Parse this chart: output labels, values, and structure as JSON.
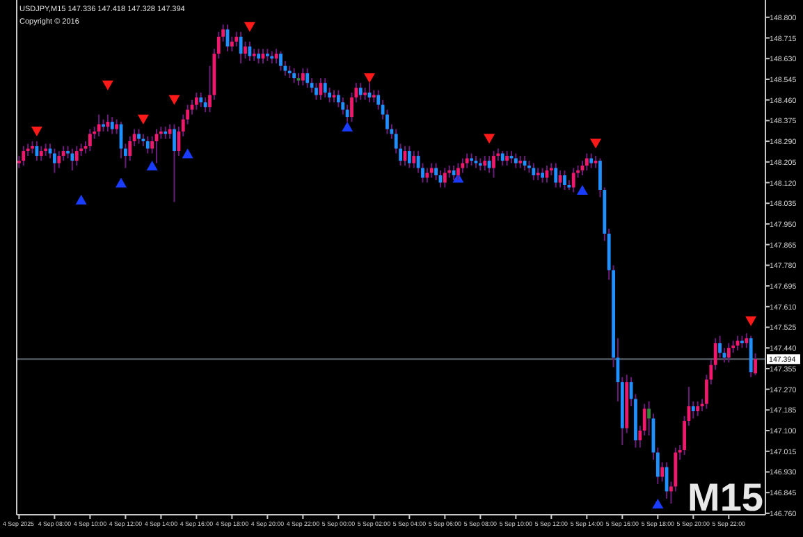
{
  "chart_data": {
    "type": "candlestick",
    "title": "USDJPY,M15  147.336 147.418 147.328 147.394",
    "annotations": [
      "Copyright © 2016",
      "M15",
      "4 Sep 2025"
    ],
    "x": [
      "2025-09-04T06:00",
      "2025-09-04T06:15",
      "2025-09-04T06:30",
      "2025-09-04T06:45",
      "2025-09-04T07:00",
      "2025-09-04T07:15",
      "2025-09-04T07:30",
      "2025-09-04T07:45",
      "2025-09-04T08:00",
      "2025-09-04T08:15",
      "2025-09-04T08:30",
      "2025-09-04T08:45",
      "2025-09-04T09:00",
      "2025-09-04T09:15",
      "2025-09-04T09:30",
      "2025-09-04T09:45",
      "2025-09-04T10:00",
      "2025-09-04T10:15",
      "2025-09-04T10:30",
      "2025-09-04T10:45",
      "2025-09-04T11:00",
      "2025-09-04T11:15",
      "2025-09-04T11:30",
      "2025-09-04T11:45",
      "2025-09-04T12:00",
      "2025-09-04T12:15",
      "2025-09-04T12:30",
      "2025-09-04T12:45",
      "2025-09-04T13:00",
      "2025-09-04T13:15",
      "2025-09-04T13:30",
      "2025-09-04T13:45",
      "2025-09-04T14:00",
      "2025-09-04T14:15",
      "2025-09-04T14:30",
      "2025-09-04T14:45",
      "2025-09-04T15:00",
      "2025-09-04T15:15",
      "2025-09-04T15:30",
      "2025-09-04T15:45",
      "2025-09-04T16:00",
      "2025-09-04T16:15",
      "2025-09-04T16:30",
      "2025-09-04T16:45",
      "2025-09-04T17:00",
      "2025-09-04T17:15",
      "2025-09-04T17:30",
      "2025-09-04T17:45",
      "2025-09-04T18:00",
      "2025-09-04T18:15",
      "2025-09-04T18:30",
      "2025-09-04T18:45",
      "2025-09-04T19:00",
      "2025-09-04T19:15",
      "2025-09-04T19:30",
      "2025-09-04T19:45",
      "2025-09-04T20:00",
      "2025-09-04T20:15",
      "2025-09-04T20:30",
      "2025-09-04T20:45",
      "2025-09-04T21:00",
      "2025-09-04T21:15",
      "2025-09-04T21:30",
      "2025-09-04T21:45",
      "2025-09-04T22:00",
      "2025-09-04T22:15",
      "2025-09-04T22:30",
      "2025-09-04T22:45",
      "2025-09-04T23:00",
      "2025-09-04T23:15",
      "2025-09-04T23:30",
      "2025-09-04T23:45",
      "2025-09-05T00:00",
      "2025-09-05T00:15",
      "2025-09-05T00:30",
      "2025-09-05T00:45",
      "2025-09-05T01:00",
      "2025-09-05T01:15",
      "2025-09-05T01:30",
      "2025-09-05T01:45",
      "2025-09-05T02:00",
      "2025-09-05T02:15",
      "2025-09-05T02:30",
      "2025-09-05T02:45",
      "2025-09-05T03:00",
      "2025-09-05T03:15",
      "2025-09-05T03:30",
      "2025-09-05T03:45",
      "2025-09-05T04:00",
      "2025-09-05T04:15",
      "2025-09-05T04:30",
      "2025-09-05T04:45",
      "2025-09-05T05:00",
      "2025-09-05T05:15",
      "2025-09-05T05:30",
      "2025-09-05T05:45",
      "2025-09-05T06:00",
      "2025-09-05T06:15",
      "2025-09-05T06:30",
      "2025-09-05T06:45",
      "2025-09-05T07:00",
      "2025-09-05T07:15",
      "2025-09-05T07:30",
      "2025-09-05T07:45",
      "2025-09-05T08:00",
      "2025-09-05T08:15",
      "2025-09-05T08:30",
      "2025-09-05T08:45",
      "2025-09-05T09:00",
      "2025-09-05T09:15",
      "2025-09-05T09:30",
      "2025-09-05T09:45",
      "2025-09-05T10:00",
      "2025-09-05T10:15",
      "2025-09-05T10:30",
      "2025-09-05T10:45",
      "2025-09-05T11:00",
      "2025-09-05T11:15",
      "2025-09-05T11:30",
      "2025-09-05T11:45",
      "2025-09-05T12:00",
      "2025-09-05T12:15",
      "2025-09-05T12:30",
      "2025-09-05T12:45",
      "2025-09-05T13:00",
      "2025-09-05T13:15",
      "2025-09-05T13:30",
      "2025-09-05T13:45",
      "2025-09-05T14:00",
      "2025-09-05T14:15",
      "2025-09-05T14:30",
      "2025-09-05T14:45",
      "2025-09-05T15:00",
      "2025-09-05T15:15",
      "2025-09-05T15:30",
      "2025-09-05T15:45",
      "2025-09-05T16:00",
      "2025-09-05T16:15",
      "2025-09-05T16:30",
      "2025-09-05T16:45",
      "2025-09-05T17:00",
      "2025-09-05T17:15",
      "2025-09-05T17:30",
      "2025-09-05T17:45",
      "2025-09-05T18:00",
      "2025-09-05T18:15",
      "2025-09-05T18:30",
      "2025-09-05T18:45",
      "2025-09-05T19:00",
      "2025-09-05T19:15",
      "2025-09-05T19:30",
      "2025-09-05T19:45",
      "2025-09-05T20:00",
      "2025-09-05T20:15",
      "2025-09-05T20:30",
      "2025-09-05T20:45",
      "2025-09-05T21:00",
      "2025-09-05T21:15",
      "2025-09-05T21:30",
      "2025-09-05T21:45",
      "2025-09-05T22:00",
      "2025-09-05T22:15",
      "2025-09-05T22:30",
      "2025-09-05T22:45",
      "2025-09-05T23:00",
      "2025-09-05T23:15",
      "2025-09-05T23:30"
    ],
    "series": [
      {
        "type": "candlestick",
        "ohlc": [
          [
            148.2,
            148.23,
            148.18,
            148.21
          ],
          [
            148.21,
            148.27,
            148.19,
            148.25
          ],
          [
            148.25,
            148.28,
            148.23,
            148.26
          ],
          [
            148.26,
            148.29,
            148.24,
            148.27
          ],
          [
            148.27,
            148.29,
            148.21,
            148.23
          ],
          [
            148.23,
            148.27,
            148.21,
            148.25
          ],
          [
            148.25,
            148.28,
            148.23,
            148.26
          ],
          [
            148.26,
            148.28,
            148.22,
            148.24
          ],
          [
            148.24,
            148.26,
            148.16,
            148.2
          ],
          [
            148.2,
            148.25,
            148.18,
            148.23
          ],
          [
            148.23,
            148.27,
            148.21,
            148.25
          ],
          [
            148.25,
            148.27,
            148.22,
            148.24
          ],
          [
            148.24,
            148.26,
            148.17,
            148.21
          ],
          [
            148.21,
            148.27,
            148.19,
            148.25
          ],
          [
            148.25,
            148.28,
            148.23,
            148.26
          ],
          [
            148.26,
            148.29,
            148.24,
            148.27
          ],
          [
            148.27,
            148.34,
            148.25,
            148.32
          ],
          [
            148.32,
            148.35,
            148.3,
            148.33
          ],
          [
            148.33,
            148.4,
            148.31,
            148.36
          ],
          [
            148.36,
            148.38,
            148.33,
            148.35
          ],
          [
            148.35,
            148.4,
            148.33,
            148.37
          ],
          [
            148.37,
            148.39,
            148.32,
            148.34
          ],
          [
            148.34,
            148.38,
            148.32,
            148.36
          ],
          [
            148.36,
            148.37,
            148.22,
            148.26
          ],
          [
            148.26,
            148.28,
            148.18,
            148.23
          ],
          [
            148.23,
            148.31,
            148.21,
            148.29
          ],
          [
            148.29,
            148.34,
            148.27,
            148.32
          ],
          [
            148.32,
            148.34,
            148.28,
            148.3
          ],
          [
            148.3,
            148.32,
            148.27,
            148.29
          ],
          [
            148.29,
            148.31,
            148.24,
            148.26
          ],
          [
            148.26,
            148.31,
            148.24,
            148.29
          ],
          [
            148.29,
            148.34,
            148.2,
            148.32
          ],
          [
            148.32,
            148.35,
            148.3,
            148.33
          ],
          [
            148.33,
            148.35,
            148.3,
            148.32
          ],
          [
            148.32,
            148.36,
            148.3,
            148.34
          ],
          [
            148.34,
            148.36,
            148.04,
            148.25
          ],
          [
            148.25,
            148.35,
            148.23,
            148.33
          ],
          [
            148.33,
            148.4,
            148.31,
            148.38
          ],
          [
            148.38,
            148.44,
            148.36,
            148.42
          ],
          [
            148.42,
            148.46,
            148.4,
            148.44
          ],
          [
            148.44,
            148.49,
            148.42,
            148.47
          ],
          [
            148.47,
            148.49,
            148.43,
            148.45
          ],
          [
            148.45,
            148.47,
            148.41,
            148.43
          ],
          [
            148.43,
            148.6,
            148.41,
            148.48
          ],
          [
            148.48,
            148.67,
            148.46,
            148.65
          ],
          [
            148.65,
            148.74,
            148.63,
            148.72
          ],
          [
            148.72,
            148.77,
            148.7,
            148.75
          ],
          [
            148.75,
            148.77,
            148.66,
            148.68
          ],
          [
            148.68,
            148.72,
            148.66,
            148.7
          ],
          [
            148.7,
            148.74,
            148.68,
            148.72
          ],
          [
            148.72,
            148.74,
            148.61,
            148.65
          ],
          [
            148.65,
            148.7,
            148.63,
            148.68
          ],
          [
            148.68,
            148.7,
            148.62,
            148.64
          ],
          [
            148.64,
            148.67,
            148.62,
            148.65
          ],
          [
            148.65,
            148.67,
            148.61,
            148.63
          ],
          [
            148.63,
            148.67,
            148.61,
            148.65
          ],
          [
            148.65,
            148.67,
            148.62,
            148.64
          ],
          [
            148.64,
            148.66,
            148.61,
            148.63
          ],
          [
            148.63,
            148.67,
            148.61,
            148.65
          ],
          [
            148.65,
            148.66,
            148.58,
            148.6
          ],
          [
            148.6,
            148.62,
            148.56,
            148.58
          ],
          [
            148.58,
            148.6,
            148.55,
            148.57
          ],
          [
            148.57,
            148.59,
            148.53,
            148.55
          ],
          [
            148.55,
            148.57,
            148.52,
            148.54
          ],
          [
            148.54,
            148.59,
            148.52,
            148.57
          ],
          [
            148.57,
            148.59,
            148.51,
            148.53
          ],
          [
            148.53,
            148.55,
            148.49,
            148.51
          ],
          [
            148.51,
            148.53,
            148.46,
            148.48
          ],
          [
            148.48,
            148.55,
            148.46,
            148.53
          ],
          [
            148.53,
            148.55,
            148.47,
            148.49
          ],
          [
            148.49,
            148.51,
            148.45,
            148.47
          ],
          [
            148.47,
            148.5,
            148.45,
            148.48
          ],
          [
            148.48,
            148.5,
            148.43,
            148.45
          ],
          [
            148.45,
            148.47,
            148.4,
            148.42
          ],
          [
            148.42,
            148.44,
            148.37,
            148.39
          ],
          [
            148.39,
            148.49,
            148.37,
            148.47
          ],
          [
            148.47,
            148.53,
            148.45,
            148.51
          ],
          [
            148.51,
            148.53,
            148.46,
            148.48
          ],
          [
            148.48,
            148.51,
            148.46,
            148.49
          ],
          [
            148.49,
            148.53,
            148.45,
            148.47
          ],
          [
            148.47,
            148.5,
            148.45,
            148.48
          ],
          [
            148.48,
            148.5,
            148.42,
            148.44
          ],
          [
            148.44,
            148.46,
            148.38,
            148.4
          ],
          [
            148.4,
            148.42,
            148.32,
            148.34
          ],
          [
            148.34,
            148.36,
            148.3,
            148.32
          ],
          [
            148.32,
            148.34,
            148.24,
            148.26
          ],
          [
            148.26,
            148.28,
            148.19,
            148.21
          ],
          [
            148.21,
            148.27,
            148.19,
            148.25
          ],
          [
            148.25,
            148.27,
            148.18,
            148.2
          ],
          [
            148.2,
            148.25,
            148.18,
            148.23
          ],
          [
            148.23,
            148.25,
            148.16,
            148.18
          ],
          [
            148.18,
            148.2,
            148.12,
            148.14
          ],
          [
            148.14,
            148.18,
            148.12,
            148.16
          ],
          [
            148.16,
            148.2,
            148.14,
            148.18
          ],
          [
            148.18,
            148.2,
            148.13,
            148.15
          ],
          [
            148.15,
            148.17,
            148.1,
            148.12
          ],
          [
            148.12,
            148.18,
            148.1,
            148.16
          ],
          [
            148.16,
            148.19,
            148.14,
            148.17
          ],
          [
            148.17,
            148.19,
            148.13,
            148.15
          ],
          [
            148.15,
            148.2,
            148.13,
            148.18
          ],
          [
            148.18,
            148.22,
            148.16,
            148.2
          ],
          [
            148.2,
            148.24,
            148.18,
            148.22
          ],
          [
            148.22,
            148.24,
            148.19,
            148.21
          ],
          [
            148.21,
            148.23,
            148.18,
            148.2
          ],
          [
            148.2,
            148.22,
            148.17,
            148.19
          ],
          [
            148.19,
            148.23,
            148.17,
            148.21
          ],
          [
            148.21,
            148.23,
            148.16,
            148.18
          ],
          [
            148.18,
            148.25,
            148.14,
            148.23
          ],
          [
            148.23,
            148.26,
            148.21,
            148.24
          ],
          [
            148.24,
            148.25,
            148.19,
            148.21
          ],
          [
            148.21,
            148.25,
            148.19,
            148.23
          ],
          [
            148.23,
            148.25,
            148.2,
            148.22
          ],
          [
            148.22,
            148.24,
            148.18,
            148.2
          ],
          [
            148.2,
            148.23,
            148.18,
            148.21
          ],
          [
            148.21,
            148.23,
            148.17,
            148.19
          ],
          [
            148.19,
            148.21,
            148.16,
            148.18
          ],
          [
            148.18,
            148.2,
            148.13,
            148.15
          ],
          [
            148.15,
            148.18,
            148.13,
            148.16
          ],
          [
            148.16,
            148.18,
            148.12,
            148.14
          ],
          [
            148.14,
            148.19,
            148.12,
            148.17
          ],
          [
            148.17,
            148.2,
            148.15,
            148.18
          ],
          [
            148.18,
            148.2,
            148.1,
            148.12
          ],
          [
            148.12,
            148.17,
            148.1,
            148.15
          ],
          [
            148.15,
            148.17,
            148.09,
            148.11
          ],
          [
            148.11,
            148.13,
            148.09,
            148.1
          ],
          [
            148.1,
            148.18,
            148.08,
            148.16
          ],
          [
            148.16,
            148.19,
            148.14,
            148.17
          ],
          [
            148.17,
            148.21,
            148.15,
            148.19
          ],
          [
            148.19,
            148.24,
            148.17,
            148.22
          ],
          [
            148.22,
            148.24,
            148.18,
            148.2
          ],
          [
            148.2,
            148.23,
            148.18,
            148.21
          ],
          [
            148.21,
            148.22,
            148.06,
            148.09
          ],
          [
            148.09,
            148.1,
            147.88,
            147.91
          ],
          [
            147.91,
            147.93,
            147.72,
            147.76
          ],
          [
            147.76,
            147.78,
            147.36,
            147.4
          ],
          [
            147.4,
            147.48,
            147.22,
            147.3
          ],
          [
            147.3,
            147.32,
            147.04,
            147.11
          ],
          [
            147.11,
            147.33,
            147.09,
            147.3
          ],
          [
            147.3,
            147.32,
            147.2,
            147.23
          ],
          [
            147.23,
            147.25,
            147.03,
            147.06
          ],
          [
            147.06,
            147.12,
            147.03,
            147.1
          ],
          [
            147.1,
            147.21,
            147.08,
            147.19
          ],
          [
            147.19,
            147.22,
            147.08,
            147.15
          ],
          [
            147.15,
            147.17,
            146.98,
            147.01
          ],
          [
            147.01,
            147.03,
            146.88,
            146.91
          ],
          [
            146.91,
            146.97,
            146.89,
            146.95
          ],
          [
            146.95,
            146.97,
            146.82,
            146.85
          ],
          [
            146.85,
            146.89,
            146.8,
            146.87
          ],
          [
            146.87,
            147.03,
            146.85,
            147.01
          ],
          [
            147.01,
            147.04,
            146.98,
            147.02
          ],
          [
            147.02,
            147.16,
            147.0,
            147.14
          ],
          [
            147.14,
            147.28,
            147.12,
            147.2
          ],
          [
            147.2,
            147.22,
            147.15,
            147.18
          ],
          [
            147.18,
            147.22,
            147.16,
            147.2
          ],
          [
            147.2,
            147.23,
            147.18,
            147.21
          ],
          [
            147.21,
            147.33,
            147.19,
            147.31
          ],
          [
            147.31,
            147.39,
            147.29,
            147.37
          ],
          [
            147.37,
            147.48,
            147.35,
            147.46
          ],
          [
            147.46,
            147.49,
            147.4,
            147.42
          ],
          [
            147.42,
            147.44,
            147.38,
            147.4
          ],
          [
            147.4,
            147.46,
            147.38,
            147.44
          ],
          [
            147.44,
            147.47,
            147.42,
            147.45
          ],
          [
            147.45,
            147.49,
            147.43,
            147.47
          ],
          [
            147.47,
            147.49,
            147.44,
            147.46
          ],
          [
            147.46,
            147.5,
            147.44,
            147.48
          ],
          [
            147.48,
            147.49,
            147.32,
            147.34
          ],
          [
            147.336,
            147.418,
            147.328,
            147.394
          ]
        ],
        "colors": [
          "#f0186c",
          "#f0186c",
          "#f0186c",
          "#f0186c",
          "#1e90ff",
          "#f0186c",
          "#f0186c",
          "#1e90ff",
          "#1e90ff",
          "#f0186c",
          "#f0186c",
          "#1e90ff",
          "#1e90ff",
          "#f0186c",
          "#f0186c",
          "#f0186c",
          "#f0186c",
          "#f0186c",
          "#f0186c",
          "#1e90ff",
          "#f0186c",
          "#1e90ff",
          "#f0186c",
          "#1e90ff",
          "#1e90ff",
          "#f0186c",
          "#f0186c",
          "#1e90ff",
          "#1e90ff",
          "#1e90ff",
          "#f0186c",
          "#f0186c",
          "#f0186c",
          "#1e90ff",
          "#f0186c",
          "#1e90ff",
          "#f0186c",
          "#f0186c",
          "#f0186c",
          "#f0186c",
          "#f0186c",
          "#1e90ff",
          "#1e90ff",
          "#f0186c",
          "#f0186c",
          "#f0186c",
          "#f0186c",
          "#1e90ff",
          "#f0186c",
          "#f0186c",
          "#1e90ff",
          "#f0186c",
          "#1e90ff",
          "#f0186c",
          "#1e90ff",
          "#f0186c",
          "#1e90ff",
          "#1e90ff",
          "#f0186c",
          "#1e90ff",
          "#1e90ff",
          "#1e90ff",
          "#1e90ff",
          "#2e8b3a",
          "#f0186c",
          "#1e90ff",
          "#1e90ff",
          "#1e90ff",
          "#f0186c",
          "#1e90ff",
          "#1e90ff",
          "#f0186c",
          "#1e90ff",
          "#1e90ff",
          "#1e90ff",
          "#f0186c",
          "#f0186c",
          "#1e90ff",
          "#f0186c",
          "#1e90ff",
          "#f0186c",
          "#1e90ff",
          "#1e90ff",
          "#1e90ff",
          "#1e90ff",
          "#1e90ff",
          "#1e90ff",
          "#f0186c",
          "#1e90ff",
          "#f0186c",
          "#1e90ff",
          "#1e90ff",
          "#f0186c",
          "#f0186c",
          "#1e90ff",
          "#1e90ff",
          "#f0186c",
          "#f0186c",
          "#1e90ff",
          "#f0186c",
          "#f0186c",
          "#f0186c",
          "#1e90ff",
          "#1e90ff",
          "#1e90ff",
          "#f0186c",
          "#1e90ff",
          "#f0186c",
          "#f0186c",
          "#1e90ff",
          "#f0186c",
          "#1e90ff",
          "#1e90ff",
          "#f0186c",
          "#1e90ff",
          "#1e90ff",
          "#1e90ff",
          "#f0186c",
          "#1e90ff",
          "#f0186c",
          "#f0186c",
          "#1e90ff",
          "#f0186c",
          "#1e90ff",
          "#1e90ff",
          "#f0186c",
          "#f0186c",
          "#f0186c",
          "#f0186c",
          "#1e90ff",
          "#f0186c",
          "#1e90ff",
          "#1e90ff",
          "#1e90ff",
          "#1e90ff",
          "#1e90ff",
          "#1e90ff",
          "#f0186c",
          "#1e90ff",
          "#1e90ff",
          "#f0186c",
          "#f0186c",
          "#2e8b3a",
          "#1e90ff",
          "#1e90ff",
          "#f0186c",
          "#1e90ff",
          "#f0186c",
          "#f0186c",
          "#f0186c",
          "#f0186c",
          "#f0186c",
          "#1e90ff",
          "#f0186c",
          "#f0186c",
          "#f0186c",
          "#f0186c",
          "#f0186c",
          "#1e90ff",
          "#1e90ff",
          "#f0186c",
          "#f0186c",
          "#f0186c",
          "#1e90ff",
          "#f0186c",
          "#1e90ff",
          "#f0186c"
        ]
      },
      {
        "type": "scatter",
        "marker": "triangle",
        "color": "#ff1a1a",
        "x": [
          "2025-09-04T07:00",
          "2025-09-04T11:00",
          "2025-09-04T13:00",
          "2025-09-04T14:45",
          "2025-09-04T19:00",
          "2025-09-05T01:45",
          "2025-09-05T08:30",
          "2025-09-05T14:30",
          "2025-09-05T23:15"
        ],
        "values": [
          148.33,
          148.52,
          148.38,
          148.46,
          148.76,
          148.55,
          148.3,
          148.28,
          147.55
        ]
      },
      {
        "type": "scatter",
        "marker": "triangle",
        "color": "#1a3cff",
        "x": [
          "2025-09-04T09:30",
          "2025-09-04T11:45",
          "2025-09-04T13:30",
          "2025-09-04T15:30",
          "2025-09-05T00:30",
          "2025-09-05T06:45",
          "2025-09-05T13:45",
          "2025-09-05T18:00"
        ],
        "values": [
          148.05,
          148.12,
          148.19,
          148.24,
          148.35,
          148.14,
          148.09,
          146.8
        ]
      }
    ],
    "xlim": [
      "2025-09-04T05:52",
      "2025-09-06T00:04"
    ],
    "xticks": [
      {
        "value": "2025-09-04T06:00",
        "label": null
      },
      {
        "value": "2025-09-04T08:00",
        "label": "4 Sep 08:00"
      },
      {
        "value": "2025-09-04T10:00",
        "label": "4 Sep 10:00"
      },
      {
        "value": "2025-09-04T12:00",
        "label": "4 Sep 12:00"
      },
      {
        "value": "2025-09-04T14:00",
        "label": "4 Sep 14:00"
      },
      {
        "value": "2025-09-04T16:00",
        "label": "4 Sep 16:00"
      },
      {
        "value": "2025-09-04T18:00",
        "label": "4 Sep 18:00"
      },
      {
        "value": "2025-09-04T20:00",
        "label": "4 Sep 20:00"
      },
      {
        "value": "2025-09-04T22:00",
        "label": "4 Sep 22:00"
      },
      {
        "value": "2025-09-05T00:00",
        "label": "5 Sep 00:00"
      },
      {
        "value": "2025-09-05T02:00",
        "label": "5 Sep 02:00"
      },
      {
        "value": "2025-09-05T04:00",
        "label": "5 Sep 04:00"
      },
      {
        "value": "2025-09-05T06:00",
        "label": "5 Sep 06:00"
      },
      {
        "value": "2025-09-05T08:00",
        "label": "5 Sep 08:00"
      },
      {
        "value": "2025-09-05T10:00",
        "label": "5 Sep 10:00"
      },
      {
        "value": "2025-09-05T12:00",
        "label": "5 Sep 12:00"
      },
      {
        "value": "2025-09-05T14:00",
        "label": "5 Sep 14:00"
      },
      {
        "value": "2025-09-05T16:00",
        "label": "5 Sep 16:00"
      },
      {
        "value": "2025-09-05T18:00",
        "label": "5 Sep 18:00"
      },
      {
        "value": "2025-09-05T20:00",
        "label": "5 Sep 20:00"
      },
      {
        "value": "2025-09-05T22:00",
        "label": "5 Sep 22:00"
      }
    ],
    "ylim": [
      146.754,
      148.871
    ],
    "yticks": [
      {
        "value": 148.8,
        "label": "148.800"
      },
      {
        "value": 148.715,
        "label": "148.715"
      },
      {
        "value": 148.63,
        "label": "148.630"
      },
      {
        "value": 148.545,
        "label": "148.545"
      },
      {
        "value": 148.46,
        "label": "148.460"
      },
      {
        "value": 148.375,
        "label": "148.375"
      },
      {
        "value": 148.29,
        "label": "148.290"
      },
      {
        "value": 148.205,
        "label": "148.205"
      },
      {
        "value": 148.12,
        "label": "148.120"
      },
      {
        "value": 148.035,
        "label": "148.035"
      },
      {
        "value": 147.95,
        "label": "147.950"
      },
      {
        "value": 147.865,
        "label": "147.865"
      },
      {
        "value": 147.78,
        "label": "147.780"
      },
      {
        "value": 147.695,
        "label": "147.695"
      },
      {
        "value": 147.61,
        "label": "147.610"
      },
      {
        "value": 147.525,
        "label": "147.525"
      },
      {
        "value": 147.44,
        "label": "147.440"
      },
      {
        "value": 147.355,
        "label": "147.355"
      },
      {
        "value": 147.27,
        "label": "147.270"
      },
      {
        "value": 147.185,
        "label": "147.185"
      },
      {
        "value": 147.1,
        "label": "147.100"
      },
      {
        "value": 147.015,
        "label": "147.015"
      },
      {
        "value": 146.93,
        "label": "146.930"
      },
      {
        "value": 146.845,
        "label": "146.845"
      },
      {
        "value": 146.76,
        "label": "146.760"
      }
    ],
    "ref_lines": [
      {
        "axis": "y",
        "value": 147.394,
        "label": "147.394",
        "color": "#5c6670"
      }
    ]
  }
}
